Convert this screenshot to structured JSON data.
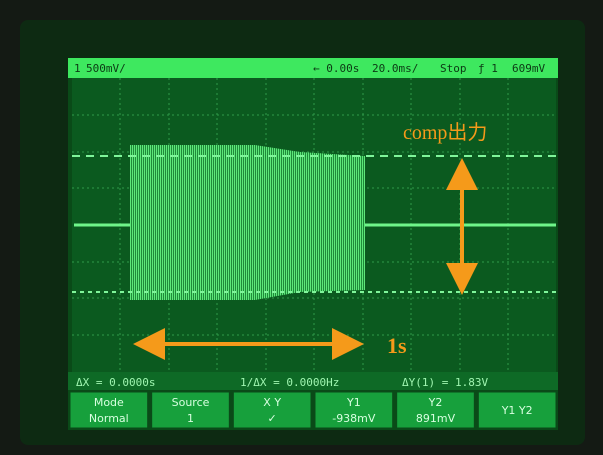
{
  "status_bar": {
    "channel": "1",
    "scale": "500mV/",
    "delay": "← 0.00s",
    "timebase": "20.0ms/",
    "run_state": "Stop",
    "trigger": "ƒ 1",
    "trigger_level": "609mV"
  },
  "measurements": [
    "ΔX = 0.0000s",
    "1/ΔX = 0.0000Hz",
    "ΔY(1) = 1.83V"
  ],
  "softkeys": [
    {
      "label": "Mode",
      "value": "Normal"
    },
    {
      "label": "Source",
      "value": "1"
    },
    {
      "label": "X    Y",
      "value": "✓"
    },
    {
      "label": "Y1",
      "value": "-938mV"
    },
    {
      "label": "Y2",
      "value": "891mV"
    },
    {
      "label": "Y1 Y2"
    }
  ],
  "annotations": {
    "signal_label": "comp出力",
    "time_span": "1s"
  }
}
